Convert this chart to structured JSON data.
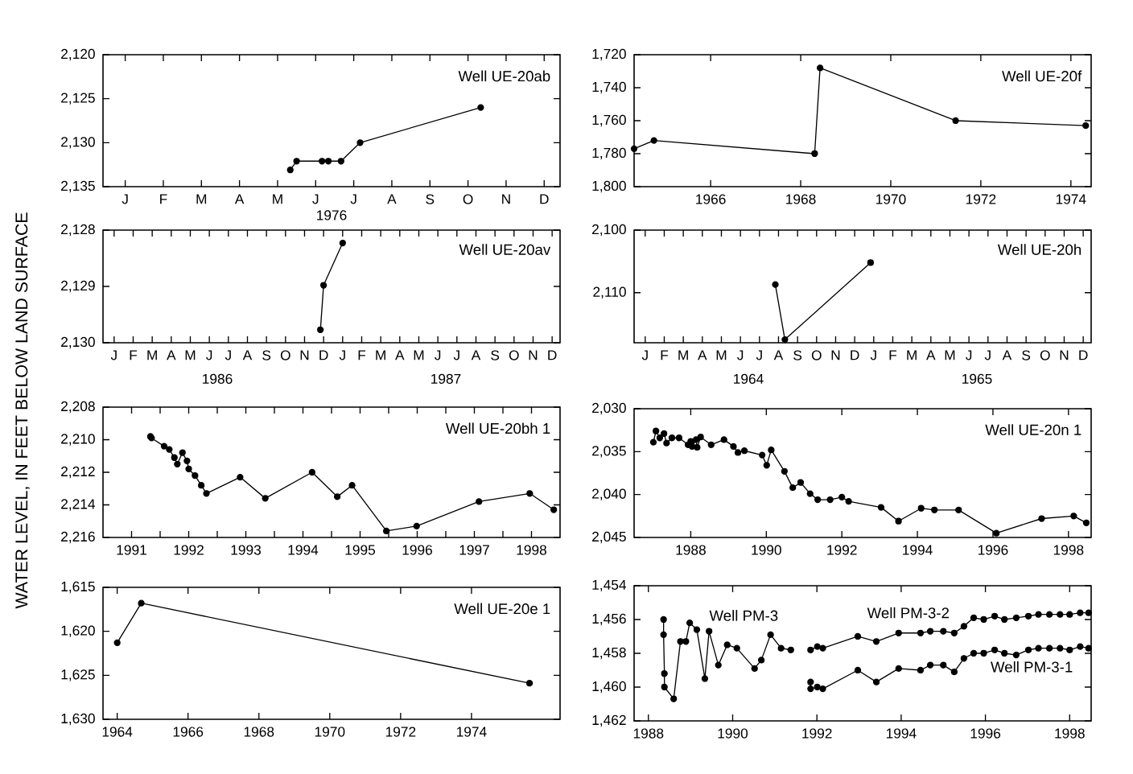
{
  "chart_data": [
    {
      "type": "line",
      "title": "Well UE-20ab",
      "xlabel": "1976",
      "marker": "circle",
      "ylim": [
        2135,
        2120
      ],
      "categories": [
        null,
        null,
        null,
        "J",
        null,
        null,
        null,
        null,
        null,
        "F",
        null,
        null,
        null,
        null,
        null,
        "M",
        null,
        null,
        null,
        null,
        null,
        "A",
        null,
        null,
        null,
        null,
        null,
        "M",
        null,
        null,
        null,
        null,
        null,
        "J",
        null,
        null,
        null,
        null,
        null,
        "J",
        null,
        null,
        null,
        null,
        null,
        "A",
        null,
        null,
        null,
        null,
        null,
        "S",
        null,
        null,
        null,
        null,
        null,
        "O",
        null,
        null,
        null,
        null,
        null,
        "N",
        null,
        null,
        null,
        null,
        null,
        "D",
        null,
        null
      ],
      "yticks": [
        {
          "value": 2120,
          "label": "2,120"
        },
        {
          "value": 2125,
          "label": "2,125"
        },
        {
          "value": 2130,
          "label": "2,130"
        },
        {
          "value": 2135,
          "label": "2,135"
        }
      ],
      "series": [
        {
          "color": "#000000",
          "values": [
            null,
            null,
            null,
            null,
            null,
            null,
            null,
            null,
            null,
            null,
            null,
            null,
            null,
            null,
            null,
            null,
            null,
            null,
            null,
            null,
            null,
            null,
            null,
            null,
            null,
            null,
            null,
            null,
            null,
            2133.1,
            2132.1,
            null,
            null,
            null,
            2132.1,
            2132.1,
            null,
            2132.1,
            null,
            null,
            2130.0,
            null,
            null,
            null,
            null,
            null,
            null,
            null,
            null,
            null,
            null,
            null,
            null,
            null,
            null,
            null,
            null,
            null,
            null,
            2126.0,
            null,
            null,
            null,
            null,
            null,
            null,
            null,
            null,
            null,
            null,
            null,
            null
          ]
        }
      ]
    },
    {
      "type": "line",
      "title": "Well UE-20f",
      "marker": "circle",
      "xlim": [
        1964.3,
        1974.45
      ],
      "ylim": [
        1800,
        1720
      ],
      "xticks": [
        1966,
        1968,
        1970,
        1972,
        1974
      ],
      "yticks": [
        {
          "value": 1720,
          "label": "1,720"
        },
        {
          "value": 1740,
          "label": "1,740"
        },
        {
          "value": 1760,
          "label": "1,760"
        },
        {
          "value": 1780,
          "label": "1,780"
        },
        {
          "value": 1800,
          "label": "1,800"
        }
      ],
      "series": [
        {
          "color": "#000000",
          "x": [
            1964.3,
            1964.74,
            1968.31,
            1968.43,
            1971.44,
            1974.33
          ],
          "values": [
            1777,
            1772,
            1780,
            1728,
            1760,
            1763
          ]
        }
      ]
    },
    {
      "type": "line",
      "title": "Well UE-20av",
      "annotations": [
        "1986",
        "1987"
      ],
      "marker": "circle",
      "ylim": [
        2130,
        2128
      ],
      "categories": [
        null,
        null,
        null,
        "J",
        null,
        null,
        null,
        null,
        null,
        "F",
        null,
        null,
        null,
        null,
        null,
        "M",
        null,
        null,
        null,
        null,
        null,
        "A",
        null,
        null,
        null,
        null,
        null,
        "M",
        null,
        null,
        null,
        null,
        null,
        "J",
        null,
        null,
        null,
        null,
        null,
        "J",
        null,
        null,
        null,
        null,
        null,
        "A",
        null,
        null,
        null,
        null,
        null,
        "S",
        null,
        null,
        null,
        null,
        null,
        "O",
        null,
        null,
        null,
        null,
        null,
        "N",
        null,
        null,
        null,
        null,
        null,
        "D",
        null,
        null,
        null,
        null,
        null,
        "J",
        null,
        null,
        null,
        null,
        null,
        "F",
        null,
        null,
        null,
        null,
        null,
        "M",
        null,
        null,
        null,
        null,
        null,
        "A",
        null,
        null,
        null,
        null,
        null,
        "M",
        null,
        null,
        null,
        null,
        null,
        "J",
        null,
        null,
        null,
        null,
        null,
        "J",
        null,
        null,
        null,
        null,
        null,
        "A",
        null,
        null,
        null,
        null,
        null,
        "S",
        null,
        null,
        null,
        null,
        null,
        "O",
        null,
        null,
        null,
        null,
        null,
        "N",
        null,
        null,
        null,
        null,
        null,
        "D",
        null,
        null
      ],
      "yticks": [
        {
          "value": 2128,
          "label": "2,128"
        },
        {
          "value": 2129,
          "label": "2,129"
        },
        {
          "value": 2130,
          "label": "2,130"
        }
      ],
      "series": [
        {
          "color": "#000000",
          "values": [
            null,
            null,
            null,
            null,
            null,
            null,
            null,
            null,
            null,
            null,
            null,
            null,
            null,
            null,
            null,
            null,
            null,
            null,
            null,
            null,
            null,
            null,
            null,
            null,
            null,
            null,
            null,
            null,
            null,
            null,
            null,
            null,
            null,
            null,
            null,
            null,
            null,
            null,
            null,
            null,
            null,
            null,
            null,
            null,
            null,
            null,
            null,
            null,
            null,
            null,
            null,
            null,
            null,
            null,
            null,
            null,
            null,
            null,
            null,
            null,
            null,
            null,
            null,
            null,
            null,
            null,
            null,
            null,
            2129.77,
            2128.98,
            null,
            null,
            null,
            null,
            null,
            2128.23,
            null,
            null,
            null,
            null,
            null,
            null,
            null,
            null,
            null,
            null,
            null,
            null,
            null,
            null,
            null,
            null,
            null,
            null,
            null,
            null,
            null,
            null,
            null,
            null,
            null,
            null,
            null,
            null,
            null,
            null,
            null,
            null,
            null,
            null,
            null,
            null,
            null,
            null,
            null,
            null,
            null,
            null,
            null,
            null,
            null,
            null,
            null,
            null,
            null,
            null,
            null,
            null,
            null,
            null,
            null,
            null,
            null,
            null,
            null,
            null,
            null,
            null,
            null,
            null,
            null,
            null,
            null,
            null
          ]
        }
      ]
    },
    {
      "type": "line",
      "title": "Well UE-20h",
      "annotations": [
        "1964",
        "1965"
      ],
      "marker": "circle",
      "ylim": [
        2118,
        2100
      ],
      "categories": [
        null,
        null,
        null,
        "J",
        null,
        null,
        null,
        null,
        null,
        "F",
        null,
        null,
        null,
        null,
        null,
        "M",
        null,
        null,
        null,
        null,
        null,
        "A",
        null,
        null,
        null,
        null,
        null,
        "M",
        null,
        null,
        null,
        null,
        null,
        "J",
        null,
        null,
        null,
        null,
        null,
        "J",
        null,
        null,
        null,
        null,
        null,
        "A",
        null,
        null,
        null,
        null,
        null,
        "S",
        null,
        null,
        null,
        null,
        null,
        "O",
        null,
        null,
        null,
        null,
        null,
        "N",
        null,
        null,
        null,
        null,
        null,
        "D",
        null,
        null,
        null,
        null,
        null,
        "J",
        null,
        null,
        null,
        null,
        null,
        "F",
        null,
        null,
        null,
        null,
        null,
        "M",
        null,
        null,
        null,
        null,
        null,
        "A",
        null,
        null,
        null,
        null,
        null,
        "M",
        null,
        null,
        null,
        null,
        null,
        "J",
        null,
        null,
        null,
        null,
        null,
        "J",
        null,
        null,
        null,
        null,
        null,
        "A",
        null,
        null,
        null,
        null,
        null,
        "S",
        null,
        null,
        null,
        null,
        null,
        "O",
        null,
        null,
        null,
        null,
        null,
        "N",
        null,
        null,
        null,
        null,
        null,
        "D",
        null,
        null
      ],
      "yticks": [
        {
          "value": 2100,
          "label": "2,100"
        },
        {
          "value": 2110,
          "label": "2,110"
        }
      ],
      "series": [
        {
          "color": "#000000",
          "values": [
            null,
            null,
            null,
            null,
            null,
            null,
            null,
            null,
            null,
            null,
            null,
            null,
            null,
            null,
            null,
            null,
            null,
            null,
            null,
            null,
            null,
            null,
            null,
            null,
            null,
            null,
            null,
            null,
            null,
            null,
            null,
            null,
            null,
            null,
            null,
            null,
            null,
            null,
            null,
            null,
            null,
            null,
            null,
            null,
            2108.7,
            null,
            null,
            2117.5,
            null,
            null,
            null,
            null,
            null,
            null,
            null,
            null,
            null,
            null,
            null,
            null,
            null,
            null,
            null,
            null,
            null,
            null,
            null,
            null,
            null,
            null,
            null,
            null,
            null,
            null,
            2105.2,
            null,
            null,
            null,
            null,
            null,
            null,
            null,
            null,
            null,
            null,
            null,
            null,
            null,
            null,
            null,
            null,
            null,
            null,
            null,
            null,
            null,
            null,
            null,
            null,
            null,
            null,
            null,
            null,
            null,
            null,
            null,
            null,
            null,
            null,
            null,
            null,
            null,
            null,
            null,
            null,
            null,
            null,
            null,
            null,
            null,
            null,
            null,
            null,
            null,
            null,
            null,
            null,
            null,
            null,
            null,
            null,
            null,
            null,
            null,
            null,
            null,
            null,
            null,
            null,
            null,
            null,
            null,
            null,
            null
          ]
        }
      ]
    },
    {
      "type": "line",
      "title": "Well UE-20bh 1",
      "ylabel": "WATER LEVEL, IN FEET BELOW LAND SURFACE",
      "marker": "circle",
      "xlim": [
        1991,
        1999
      ],
      "ylim": [
        2216,
        2208
      ],
      "xticks": [
        {
          "value": 1991.5,
          "label": "1991"
        },
        {
          "value": 1992,
          "label": null
        },
        {
          "value": 1992.5,
          "label": "1992"
        },
        {
          "value": 1993,
          "label": null
        },
        {
          "value": 1993.5,
          "label": "1993"
        },
        {
          "value": 1994,
          "label": null
        },
        {
          "value": 1994.5,
          "label": "1994"
        },
        {
          "value": 1995,
          "label": null
        },
        {
          "value": 1995.5,
          "label": "1995"
        },
        {
          "value": 1996,
          "label": null
        },
        {
          "value": 1996.5,
          "label": "1996"
        },
        {
          "value": 1997,
          "label": null
        },
        {
          "value": 1997.5,
          "label": "1997"
        },
        {
          "value": 1998,
          "label": null
        },
        {
          "value": 1998.5,
          "label": "1998"
        }
      ],
      "yticks": [
        {
          "value": 2208,
          "label": "2,208"
        },
        {
          "value": 2210,
          "label": "2,210"
        },
        {
          "value": 2212,
          "label": "2,212"
        },
        {
          "value": 2214,
          "label": "2,214"
        },
        {
          "value": 2216,
          "label": "2,216"
        }
      ],
      "series": [
        {
          "color": "#000000",
          "x": [
            1991.83,
            1991.85,
            1992.07,
            1992.16,
            1992.25,
            1992.3,
            1992.39,
            1992.47,
            1992.5,
            1992.61,
            1992.72,
            1992.81,
            1993.4,
            1993.84,
            1994.66,
            1995.1,
            1995.36,
            1995.96,
            1996.49,
            1997.58,
            1998.47,
            1998.89
          ],
          "values": [
            2209.8,
            2209.9,
            2210.4,
            2210.6,
            2211.1,
            2211.5,
            2210.8,
            2211.3,
            2211.8,
            2212.2,
            2212.8,
            2213.3,
            2212.3,
            2213.6,
            2212.0,
            2213.5,
            2212.8,
            2215.6,
            2215.3,
            2213.8,
            2213.3,
            2214.3
          ]
        }
      ]
    },
    {
      "type": "line",
      "title": "Well UE-20n 1",
      "marker": "circle",
      "xlim": [
        1986.5,
        1998.6
      ],
      "ylim": [
        2045,
        2030
      ],
      "xticks": [
        1988,
        1990,
        1992,
        1994,
        1996,
        1998
      ],
      "yticks": [
        {
          "value": 2030,
          "label": "2,030"
        },
        {
          "value": 2035,
          "label": "2,035"
        },
        {
          "value": 2040,
          "label": "2,040"
        },
        {
          "value": 2045,
          "label": "2,045"
        }
      ],
      "series": [
        {
          "color": "#000000",
          "x": [
            1987.01,
            1987.08,
            1987.18,
            1987.29,
            1987.36,
            1987.5,
            1987.69,
            1987.93,
            1988.0,
            1988.04,
            1988.14,
            1988.17,
            1988.26,
            1988.54,
            1988.88,
            1989.13,
            1989.25,
            1989.42,
            1989.89,
            1990.01,
            1990.13,
            1990.48,
            1990.7,
            1990.91,
            1991.16,
            1991.36,
            1991.69,
            1992.0,
            1992.18,
            1993.04,
            1993.5,
            1994.1,
            1994.45,
            1995.09,
            1996.09,
            1997.29,
            1998.14,
            1998.47
          ],
          "values": [
            2033.9,
            2032.6,
            2033.4,
            2032.9,
            2034.0,
            2033.4,
            2033.4,
            2034.2,
            2033.8,
            2034.4,
            2033.6,
            2034.5,
            2033.3,
            2034.2,
            2033.6,
            2034.4,
            2035.1,
            2034.9,
            2035.4,
            2036.6,
            2034.8,
            2037.3,
            2039.2,
            2038.6,
            2039.9,
            2040.6,
            2040.6,
            2040.3,
            2040.8,
            2041.5,
            2043.1,
            2041.6,
            2041.8,
            2041.8,
            2044.5,
            2042.8,
            2042.5,
            2043.3
          ]
        }
      ]
    },
    {
      "type": "line",
      "title": "Well UE-20e 1",
      "marker": "circle",
      "xlim": [
        1963.6,
        1976.5
      ],
      "ylim": [
        1630,
        1615
      ],
      "xticks": [
        1964,
        1966,
        1968,
        1970,
        1972,
        1974
      ],
      "yticks": [
        {
          "value": 1615,
          "label": "1,615"
        },
        {
          "value": 1620,
          "label": "1,620"
        },
        {
          "value": 1625,
          "label": "1,625"
        },
        {
          "value": 1630,
          "label": "1,630"
        }
      ],
      "series": [
        {
          "color": "#000000",
          "x": [
            1964.0,
            1964.68,
            1975.64
          ],
          "values": [
            1621.3,
            1616.8,
            1625.9
          ]
        }
      ]
    },
    {
      "type": "line",
      "marker": "circle",
      "xlim": [
        1987.66,
        1998.51
      ],
      "ylim": [
        1462,
        1454
      ],
      "annotations": [
        "Well PM-3",
        "Well PM-3-2",
        "Well PM-3-1"
      ],
      "xticks": [
        1988,
        1990,
        1992,
        1994,
        1996,
        1998
      ],
      "yticks": [
        {
          "value": 1454,
          "label": "1,454"
        },
        {
          "value": 1456,
          "label": "1,456"
        },
        {
          "value": 1458,
          "label": "1,458"
        },
        {
          "value": 1460,
          "label": "1,460"
        },
        {
          "value": 1462,
          "label": "1,462"
        }
      ],
      "series": [
        {
          "color": "#000000",
          "x": [
            1988.36,
            1988.36,
            1988.38,
            1988.38,
            1988.6,
            1988.76,
            1988.89,
            1988.98,
            1989.15,
            1989.34,
            1989.44,
            1989.66,
            1989.87,
            1990.1,
            1990.52,
            1990.68,
            1990.9,
            1991.15,
            1991.38
          ],
          "values": [
            1456.0,
            1456.9,
            1459.2,
            1460.0,
            1460.7,
            1457.3,
            1457.3,
            1456.2,
            1456.6,
            1459.5,
            1456.7,
            1458.7,
            1457.5,
            1457.7,
            1458.9,
            1458.4,
            1456.9,
            1457.7,
            1457.8
          ]
        },
        {
          "color": "#000000",
          "x": [
            1991.85,
            1992.01,
            1992.14,
            1992.97,
            1993.41,
            1993.94,
            1994.46,
            1994.69,
            1995.0,
            1995.26,
            1995.49,
            1995.72,
            1995.96,
            1996.22,
            1996.45,
            1996.73,
            1997.02,
            1997.26,
            1997.52,
            1997.77,
            1998.0,
            1998.25,
            1998.45
          ],
          "values": [
            1457.8,
            1457.6,
            1457.7,
            1457.0,
            1457.3,
            1456.8,
            1456.8,
            1456.7,
            1456.7,
            1456.8,
            1456.4,
            1455.9,
            1456.0,
            1455.8,
            1456.0,
            1455.9,
            1455.8,
            1455.7,
            1455.7,
            1455.7,
            1455.7,
            1455.6,
            1455.6
          ]
        },
        {
          "color": "#000000",
          "x": [
            1991.85,
            1991.85,
            1992.01,
            1992.14,
            1992.97,
            1993.41,
            1993.94,
            1994.46,
            1994.69,
            1995.0,
            1995.26,
            1995.49,
            1995.72,
            1995.96,
            1996.22,
            1996.45,
            1996.73,
            1997.02,
            1997.26,
            1997.52,
            1997.77,
            1998.0,
            1998.25,
            1998.45
          ],
          "values": [
            1459.7,
            1460.1,
            1460.0,
            1460.1,
            1459.0,
            1459.7,
            1458.9,
            1459.0,
            1458.7,
            1458.7,
            1459.1,
            1458.3,
            1458.0,
            1458.0,
            1457.8,
            1458.0,
            1458.1,
            1457.8,
            1457.7,
            1457.7,
            1457.7,
            1457.8,
            1457.6,
            1457.7
          ]
        }
      ]
    }
  ]
}
